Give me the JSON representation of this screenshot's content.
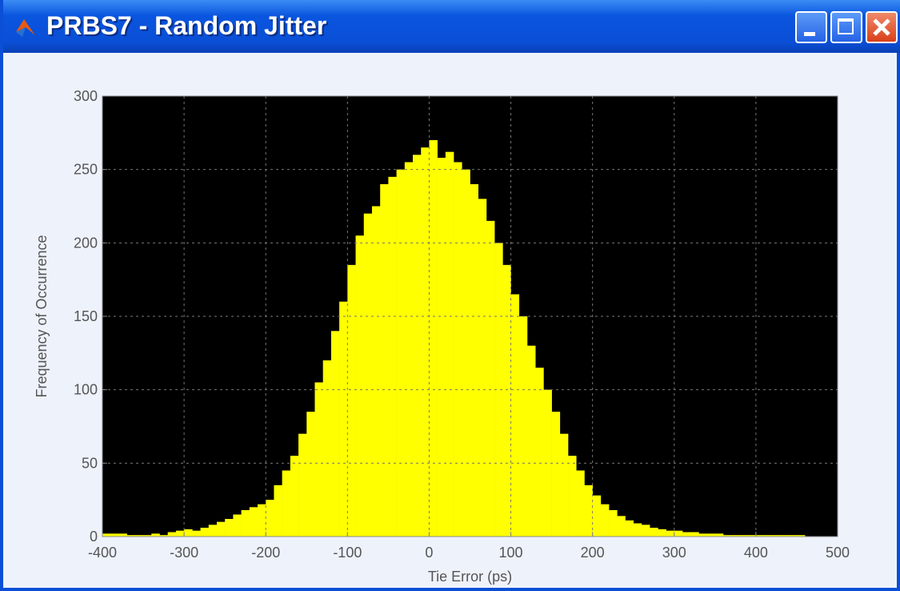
{
  "chart_data": {
    "type": "histogram",
    "title": "PRBS7 - Random Jitter",
    "xlabel": "Tie Error (ps)",
    "ylabel": "Frequency of Occurrence",
    "bins": [
      -400,
      -390,
      -380,
      -370,
      -360,
      -350,
      -340,
      -330,
      -320,
      -310,
      -300,
      -290,
      -280,
      -270,
      -260,
      -250,
      -240,
      -230,
      -220,
      -210,
      -200,
      -190,
      -180,
      -170,
      -160,
      -150,
      -140,
      -130,
      -120,
      -110,
      -100,
      -90,
      -80,
      -70,
      -60,
      -50,
      -40,
      -30,
      -20,
      -10,
      0,
      10,
      20,
      30,
      40,
      50,
      60,
      70,
      80,
      90,
      100,
      110,
      120,
      130,
      140,
      150,
      160,
      170,
      180,
      190,
      200,
      210,
      220,
      230,
      240,
      250,
      260,
      270,
      280,
      290,
      300,
      310,
      320,
      330,
      340,
      350,
      360,
      370,
      380,
      390,
      400,
      410,
      420,
      430,
      440,
      450,
      460
    ],
    "values": [
      2,
      2,
      2,
      1,
      1,
      1,
      2,
      1,
      3,
      4,
      5,
      4,
      6,
      8,
      10,
      12,
      15,
      18,
      20,
      22,
      25,
      35,
      45,
      55,
      70,
      85,
      105,
      120,
      140,
      160,
      185,
      205,
      220,
      225,
      240,
      245,
      250,
      255,
      260,
      265,
      270,
      258,
      262,
      255,
      250,
      240,
      230,
      215,
      200,
      185,
      165,
      150,
      130,
      115,
      100,
      85,
      70,
      55,
      45,
      35,
      28,
      22,
      18,
      14,
      11,
      9,
      8,
      6,
      5,
      4,
      4,
      3,
      3,
      2,
      2,
      2,
      1,
      1,
      1,
      1,
      1,
      1,
      1,
      1,
      1,
      1
    ],
    "color": "#ffff00",
    "background": "#000000",
    "xlim": [
      -400,
      500
    ],
    "xticks": [
      -400,
      -300,
      -200,
      -100,
      0,
      100,
      200,
      300,
      400,
      500
    ],
    "ylim": [
      0,
      300
    ],
    "yticks": [
      0,
      50,
      100,
      150,
      200,
      250,
      300
    ],
    "grid": true
  }
}
